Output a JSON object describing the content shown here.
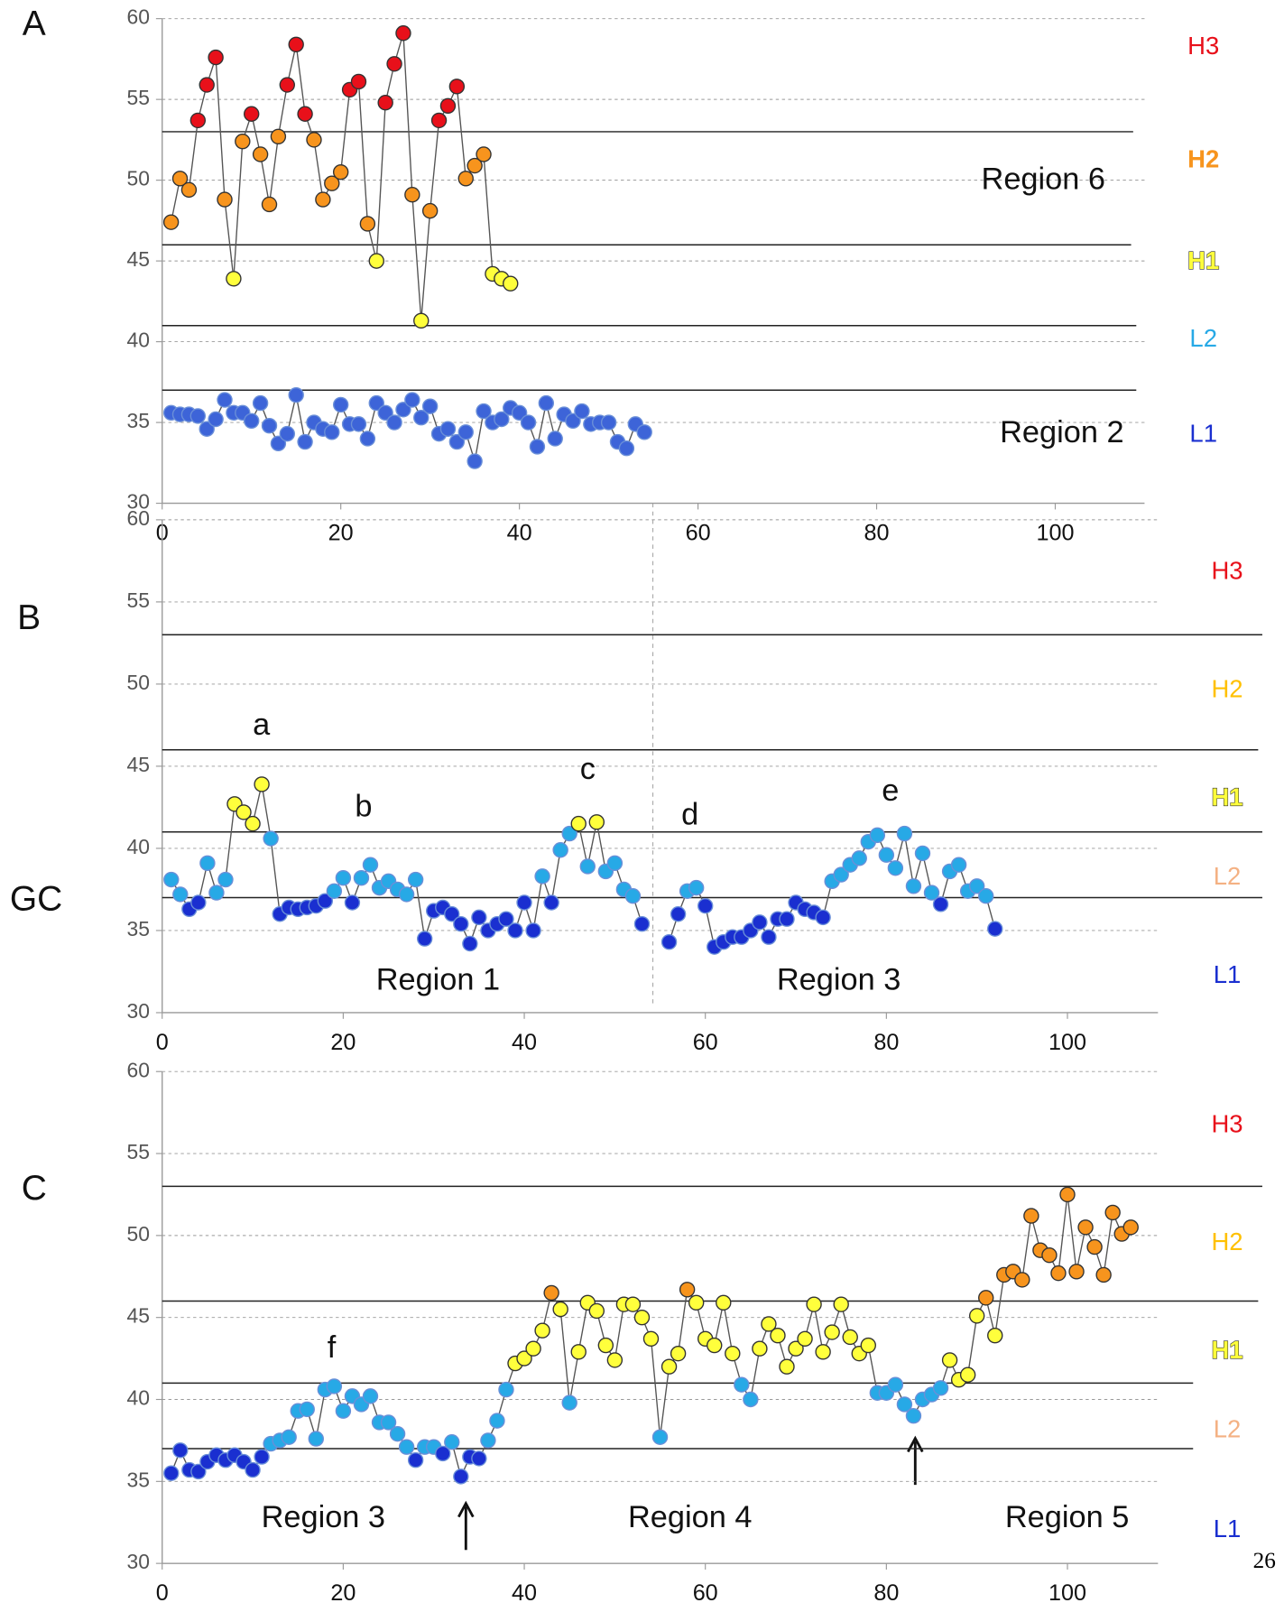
{
  "y_label": "GC",
  "page_number": "26",
  "chart_data": [
    {
      "type": "line",
      "label": "A",
      "xlim": [
        0,
        110
      ],
      "xticks": [
        0,
        20,
        40,
        60,
        80,
        100
      ],
      "ylim": [
        30,
        60
      ],
      "yticks": [
        30,
        35,
        40,
        45,
        50,
        55,
        60
      ],
      "thresholds": [
        37,
        41,
        46,
        53
      ],
      "point_colors": [
        "#3d64d8",
        "#27a9e6",
        "#ffff3c",
        "#f7941d",
        "#e8101a"
      ],
      "levels": [
        {
          "name": "H3",
          "color": "#e8101a"
        },
        {
          "name": "H2",
          "color": "#f7941d"
        },
        {
          "name": "H1",
          "color": "#ffff3c"
        },
        {
          "name": "L2",
          "color": "#27a9e6"
        },
        {
          "name": "L1",
          "color": "#1a2fd0"
        }
      ],
      "annotations": [
        "Region 6",
        "Region 2"
      ],
      "series": [
        {
          "x": [
            1,
            2,
            3,
            4,
            5,
            6,
            7,
            8,
            9,
            10,
            11,
            12,
            13,
            14,
            15,
            16,
            17,
            18,
            19,
            20,
            21,
            22,
            23,
            24,
            25,
            26,
            27,
            28,
            29,
            30,
            31,
            32,
            33,
            34,
            35,
            36,
            37,
            38,
            39
          ],
          "values": [
            47.4,
            50.1,
            49.4,
            53.7,
            55.9,
            57.6,
            48.8,
            43.9,
            52.4,
            54.1,
            51.6,
            48.5,
            52.7,
            55.9,
            58.4,
            54.1,
            52.5,
            48.8,
            49.8,
            50.5,
            55.6,
            56.1,
            47.3,
            45.0,
            54.8,
            57.2,
            59.1,
            49.1,
            41.3,
            48.1,
            53.7,
            54.6,
            55.8,
            50.1,
            50.9,
            51.6,
            44.2,
            43.9,
            43.6
          ]
        },
        {
          "x": [
            1,
            2,
            3,
            4,
            5,
            6,
            7,
            8,
            9,
            10,
            11,
            12,
            13,
            14,
            15,
            16,
            17,
            18,
            19,
            20,
            21,
            22,
            23,
            24,
            25,
            26,
            27,
            28,
            29,
            30,
            31,
            32,
            33,
            34,
            35,
            36,
            37,
            38,
            39,
            40,
            41,
            42,
            43,
            44,
            45,
            46,
            47,
            48,
            49,
            50,
            51,
            52,
            53,
            54
          ],
          "values": [
            35.6,
            35.5,
            35.5,
            35.4,
            34.6,
            35.2,
            36.4,
            35.6,
            35.6,
            35.1,
            36.2,
            34.8,
            33.7,
            34.3,
            36.7,
            33.8,
            35.0,
            34.6,
            34.4,
            36.1,
            34.9,
            34.9,
            34.0,
            36.2,
            35.6,
            35.0,
            35.8,
            36.4,
            35.3,
            36.0,
            34.3,
            34.6,
            33.8,
            34.4,
            32.6,
            35.7,
            35.0,
            35.2,
            35.9,
            35.6,
            35.0,
            33.5,
            36.2,
            34.0,
            35.5,
            35.1,
            35.7,
            34.9,
            35.0,
            35.0,
            33.8,
            33.4,
            34.9,
            34.4
          ]
        }
      ]
    },
    {
      "type": "line",
      "label": "B",
      "xlim": [
        0,
        110
      ],
      "xticks": [
        0,
        20,
        40,
        60,
        80,
        100
      ],
      "ylim": [
        30,
        60
      ],
      "yticks": [
        30,
        35,
        40,
        45,
        50,
        55,
        60
      ],
      "thresholds": [
        37,
        41,
        46,
        53
      ],
      "point_colors": [
        "#1a2fd0",
        "#27a9e6",
        "#ffff3c",
        "#f7941d",
        "#e8101a"
      ],
      "levels": [
        {
          "name": "H3",
          "color": "#e8101a"
        },
        {
          "name": "H2",
          "color": "#ffc000"
        },
        {
          "name": "H1",
          "color": "#ffff3c"
        },
        {
          "name": "L2",
          "color": "#f4b183"
        },
        {
          "name": "L1",
          "color": "#1a2fd0"
        }
      ],
      "annotations": [
        "a",
        "b",
        "c",
        "d",
        "e",
        "Region 1",
        "Region 3"
      ],
      "series": [
        {
          "x": [
            1,
            2,
            3,
            4,
            5,
            6,
            7,
            8,
            9,
            10,
            11,
            12,
            13,
            14,
            15,
            16,
            17,
            18,
            19,
            20,
            21,
            22,
            23,
            24,
            25,
            26,
            27,
            28,
            29,
            30,
            31,
            32,
            33,
            34,
            35,
            36,
            37,
            38,
            39,
            40,
            41,
            42,
            43,
            44,
            45,
            46,
            47,
            48,
            49,
            50,
            51,
            52,
            53,
            54,
            55,
            56,
            57,
            58,
            59,
            60,
            61,
            62,
            63,
            64,
            65,
            66,
            67,
            68,
            69,
            70,
            71,
            72,
            73,
            74,
            75,
            76,
            77,
            78,
            79,
            80,
            81,
            82,
            83,
            84,
            85,
            86,
            87,
            88,
            89,
            90,
            91,
            92
          ],
          "values": [
            38.1,
            37.2,
            36.3,
            36.7,
            39.1,
            37.3,
            38.1,
            42.7,
            42.2,
            41.5,
            43.9,
            40.6,
            36.0,
            36.4,
            36.3,
            36.4,
            36.5,
            36.8,
            37.4,
            38.2,
            36.7,
            38.2,
            39.0,
            37.6,
            38.0,
            37.5,
            37.2,
            38.1,
            34.5,
            36.2,
            36.4,
            36.0,
            35.4,
            34.2,
            35.8,
            35.0,
            35.4,
            35.7,
            35.0,
            36.7,
            35.0,
            38.3,
            36.7,
            39.9,
            40.9,
            41.5,
            38.9,
            41.6,
            38.6,
            39.1,
            37.5,
            37.1,
            35.4,
            null,
            null,
            34.3,
            36.0,
            37.4,
            37.6,
            36.5,
            34.0,
            34.3,
            34.6,
            34.6,
            35.0,
            35.5,
            34.6,
            35.7,
            35.7,
            36.7,
            36.3,
            36.1,
            35.8,
            38.0,
            38.4,
            39.0,
            39.4,
            40.4,
            40.8,
            39.6,
            38.8,
            40.9,
            37.7,
            39.7,
            37.3,
            36.6,
            38.6,
            39.0,
            37.4,
            37.7,
            37.1,
            35.1
          ]
        }
      ]
    },
    {
      "type": "line",
      "label": "C",
      "xlim": [
        0,
        110
      ],
      "xticks": [
        0,
        20,
        40,
        60,
        80,
        100
      ],
      "ylim": [
        30,
        60
      ],
      "yticks": [
        30,
        35,
        40,
        45,
        50,
        55,
        60
      ],
      "thresholds": [
        37,
        41,
        46,
        53
      ],
      "point_colors": [
        "#1a2fd0",
        "#27a9e6",
        "#ffff3c",
        "#f7941d",
        "#e8101a"
      ],
      "levels": [
        {
          "name": "H3",
          "color": "#e8101a"
        },
        {
          "name": "H2",
          "color": "#ffc000"
        },
        {
          "name": "H1",
          "color": "#ffff3c"
        },
        {
          "name": "L2",
          "color": "#f4b183"
        },
        {
          "name": "L1",
          "color": "#1a2fd0"
        }
      ],
      "annotations": [
        "f",
        "Region 3",
        "Region 4",
        "Region 5"
      ],
      "series": [
        {
          "x": [
            1,
            2,
            3,
            4,
            5,
            6,
            7,
            8,
            9,
            10,
            11,
            12,
            13,
            14,
            15,
            16,
            17,
            18,
            19,
            20,
            21,
            22,
            23,
            24,
            25,
            26,
            27,
            28,
            29,
            30,
            31,
            32,
            33,
            34,
            35,
            36,
            37,
            38,
            39,
            40,
            41,
            42,
            43,
            44,
            45,
            46,
            47,
            48,
            49,
            50,
            51,
            52,
            53,
            54,
            55,
            56,
            57,
            58,
            59,
            60,
            61,
            62,
            63,
            64,
            65,
            66,
            67,
            68,
            69,
            70,
            71,
            72,
            73,
            74,
            75,
            76,
            77,
            78,
            79,
            80,
            81,
            82,
            83,
            84,
            85,
            86,
            87,
            88,
            89,
            90,
            91,
            92,
            93,
            94,
            95,
            96,
            97,
            98,
            99,
            100,
            101,
            102,
            103,
            104,
            105,
            106,
            107
          ],
          "values": [
            35.5,
            36.9,
            35.7,
            35.6,
            36.2,
            36.6,
            36.3,
            36.6,
            36.2,
            35.7,
            36.5,
            37.3,
            37.5,
            37.7,
            39.3,
            39.4,
            37.6,
            40.6,
            40.8,
            39.3,
            40.2,
            39.7,
            40.2,
            38.6,
            38.6,
            37.9,
            37.1,
            36.3,
            37.1,
            37.1,
            36.7,
            37.4,
            35.3,
            36.5,
            36.4,
            37.5,
            38.7,
            40.6,
            42.2,
            42.5,
            43.1,
            44.2,
            46.5,
            45.5,
            39.8,
            42.9,
            45.9,
            45.4,
            43.3,
            42.4,
            45.8,
            45.8,
            45.0,
            43.7,
            37.7,
            42.0,
            42.8,
            46.7,
            45.9,
            43.7,
            43.3,
            45.9,
            42.8,
            40.9,
            40.0,
            43.1,
            44.6,
            43.9,
            42.0,
            43.1,
            43.7,
            45.8,
            42.9,
            44.1,
            45.8,
            43.8,
            42.8,
            43.3,
            40.4,
            40.4,
            40.9,
            39.7,
            39.0,
            40.0,
            40.3,
            40.7,
            42.4,
            41.2,
            41.5,
            45.1,
            46.2,
            43.9,
            47.6,
            47.8,
            47.3,
            51.2,
            49.1,
            48.8,
            47.7,
            52.5,
            47.8,
            50.5,
            49.3,
            47.6,
            51.4,
            50.1,
            50.5
          ]
        }
      ]
    }
  ]
}
